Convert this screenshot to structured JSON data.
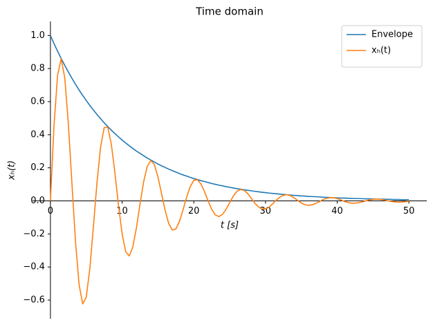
{
  "chart_data": {
    "type": "line",
    "title": "Time domain",
    "x_label": "t [s]",
    "y_label": "xₕ(t)",
    "x": [
      0,
      0.5,
      1,
      1.5,
      2,
      2.5,
      3,
      3.5,
      4,
      4.5,
      5,
      5.5,
      6,
      6.5,
      7,
      7.5,
      8,
      8.5,
      9,
      9.5,
      10,
      10.5,
      11,
      11.5,
      12,
      12.5,
      13,
      13.5,
      14,
      14.5,
      15,
      15.5,
      16,
      16.5,
      17,
      17.5,
      18,
      18.5,
      19,
      19.5,
      20,
      20.5,
      21,
      21.5,
      22,
      22.5,
      23,
      23.5,
      24,
      24.5,
      25,
      25.5,
      26,
      26.5,
      27,
      27.5,
      28,
      28.5,
      29,
      29.5,
      30,
      30.5,
      31,
      31.5,
      32,
      32.5,
      33,
      33.5,
      34,
      34.5,
      35,
      35.5,
      36,
      36.5,
      37,
      37.5,
      38,
      38.5,
      39,
      39.5,
      40,
      40.5,
      41,
      41.5,
      42,
      42.5,
      43,
      43.5,
      44,
      44.5,
      45,
      45.5,
      46,
      46.5,
      47,
      47.5,
      48,
      48.5,
      49,
      49.5,
      50
    ],
    "series": [
      {
        "name": "Envelope",
        "color": "#1f77b4",
        "values": [
          1,
          0.951,
          0.905,
          0.861,
          0.819,
          0.779,
          0.741,
          0.705,
          0.67,
          0.638,
          0.607,
          0.577,
          0.549,
          0.522,
          0.497,
          0.472,
          0.449,
          0.427,
          0.407,
          0.387,
          0.368,
          0.35,
          0.333,
          0.317,
          0.301,
          0.287,
          0.273,
          0.259,
          0.247,
          0.235,
          0.223,
          0.212,
          0.202,
          0.192,
          0.183,
          0.174,
          0.165,
          0.157,
          0.15,
          0.142,
          0.135,
          0.129,
          0.122,
          0.117,
          0.111,
          0.105,
          0.1,
          0.095,
          0.091,
          0.086,
          0.082,
          0.078,
          0.074,
          0.071,
          0.067,
          0.064,
          0.061,
          0.058,
          0.055,
          0.052,
          0.05,
          0.047,
          0.045,
          0.043,
          0.041,
          0.039,
          0.037,
          0.035,
          0.033,
          0.032,
          0.03,
          0.029,
          0.027,
          0.026,
          0.025,
          0.024,
          0.022,
          0.021,
          0.02,
          0.019,
          0.018,
          0.017,
          0.017,
          0.016,
          0.015,
          0.014,
          0.014,
          0.013,
          0.012,
          0.012,
          0.011,
          0.011,
          0.01,
          0.01,
          0.009,
          0.009,
          0.008,
          0.008,
          0.007,
          0.007,
          0.007
        ]
      },
      {
        "name": "xₕ(t)",
        "color": "#ff7f0e",
        "values": [
          0,
          0.456,
          0.761,
          0.859,
          0.744,
          0.466,
          0.105,
          -0.247,
          -0.507,
          -0.623,
          -0.582,
          -0.407,
          -0.153,
          0.112,
          0.326,
          0.443,
          0.445,
          0.341,
          0.168,
          -0.029,
          -0.2,
          -0.308,
          -0.333,
          -0.277,
          -0.162,
          -0.019,
          0.115,
          0.208,
          0.244,
          0.219,
          0.145,
          0.044,
          -0.058,
          -0.137,
          -0.176,
          -0.17,
          -0.124,
          -0.054,
          0.022,
          0.086,
          0.124,
          0.128,
          0.102,
          0.055,
          -0.001,
          -0.051,
          -0.085,
          -0.095,
          -0.082,
          -0.051,
          -0.011,
          0.028,
          0.057,
          0.069,
          0.064,
          0.045,
          0.016,
          -0.013,
          -0.036,
          -0.049,
          -0.049,
          -0.038,
          -0.018,
          0.004,
          0.022,
          0.034,
          0.037,
          0.031,
          0.018,
          0.002,
          -0.013,
          -0.023,
          -0.027,
          -0.024,
          -0.016,
          -0.005,
          0.007,
          0.015,
          0.019,
          0.019,
          0.014,
          0.006,
          -0.003,
          -0.01,
          -0.014,
          -0.014,
          -0.011,
          -0.006,
          0,
          0.006,
          0.009,
          0.011,
          0.009,
          0.006,
          0.001,
          -0.003,
          -0.006,
          -0.008,
          -0.007,
          -0.005,
          -0.002
        ]
      }
    ],
    "xlim": [
      -2.5,
      52.5
    ],
    "ylim": [
      -0.713,
      1.085
    ],
    "xticks": [
      0,
      10,
      20,
      30,
      40,
      50
    ],
    "yticks": [
      {
        "value": -0.6,
        "label": "−0.6"
      },
      {
        "value": -0.4,
        "label": "−0.4"
      },
      {
        "value": -0.2,
        "label": "−0.2"
      },
      {
        "value": 0,
        "label": "0.0"
      },
      {
        "value": 0.2,
        "label": "0.2"
      },
      {
        "value": 0.4,
        "label": "0.4"
      },
      {
        "value": 0.6,
        "label": "0.6"
      },
      {
        "value": 0.8,
        "label": "0.8"
      },
      {
        "value": 1.0,
        "label": "1.0"
      }
    ],
    "legend": "upper right"
  }
}
